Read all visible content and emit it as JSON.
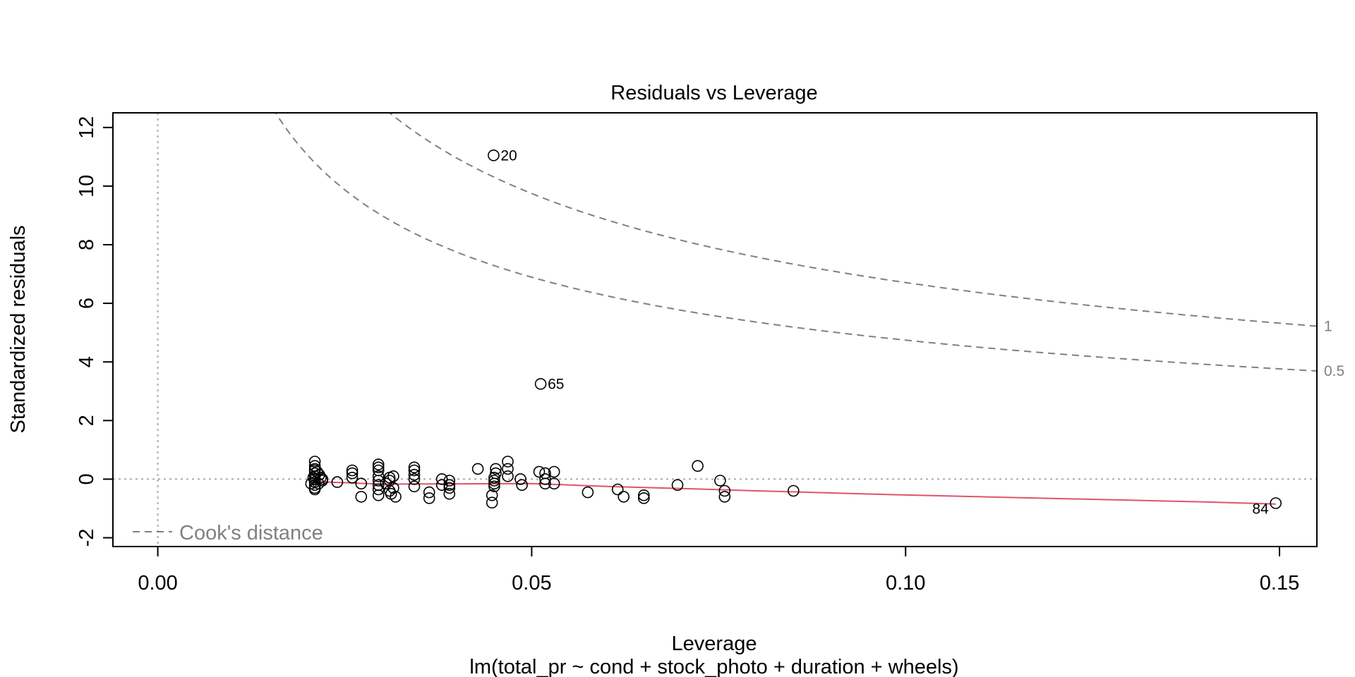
{
  "chart_data": {
    "type": "scatter",
    "title": "Residuals vs Leverage",
    "xlabel": "Leverage",
    "ylabel": "Standardized residuals",
    "subtitle": "lm(total_pr ~ cond + stock_photo + duration + wheels)",
    "xlim": [
      -0.006,
      0.155
    ],
    "ylim": [
      -2.3,
      12.5
    ],
    "x_ticks": [
      0.0,
      0.05,
      0.1,
      0.15
    ],
    "x_tick_labels": [
      "0.00",
      "0.05",
      "0.10",
      "0.15"
    ],
    "y_ticks": [
      -2,
      0,
      2,
      4,
      6,
      8,
      10,
      12
    ],
    "y_tick_labels": [
      "-2",
      "0",
      "2",
      "4",
      "6",
      "8",
      "10",
      "12"
    ],
    "grid": false,
    "reference_lines": {
      "horizontal_y": 0,
      "vertical_x": 0
    },
    "legend": {
      "position": "bottom-left",
      "label": "Cook's distance"
    },
    "cooks_contours": [
      {
        "level": 0.5,
        "label": "0.5"
      },
      {
        "level": 1,
        "label": "1"
      }
    ],
    "cook_k": 5,
    "points": [
      [
        0.0205,
        -0.15
      ],
      [
        0.0208,
        0.05
      ],
      [
        0.021,
        0.35
      ],
      [
        0.021,
        0.6
      ],
      [
        0.021,
        0.45
      ],
      [
        0.021,
        0.3
      ],
      [
        0.021,
        0.2
      ],
      [
        0.021,
        0.1
      ],
      [
        0.021,
        0.0
      ],
      [
        0.021,
        -0.1
      ],
      [
        0.021,
        -0.2
      ],
      [
        0.021,
        -0.3
      ],
      [
        0.021,
        -0.35
      ],
      [
        0.0213,
        0.25
      ],
      [
        0.0215,
        -0.15
      ],
      [
        0.0216,
        0.15
      ],
      [
        0.0218,
        0.05
      ],
      [
        0.022,
        -0.05
      ],
      [
        0.022,
        0.0
      ],
      [
        0.024,
        -0.1
      ],
      [
        0.026,
        0.3
      ],
      [
        0.026,
        0.2
      ],
      [
        0.026,
        0.05
      ],
      [
        0.0272,
        -0.6
      ],
      [
        0.0272,
        -0.15
      ],
      [
        0.0295,
        0.5
      ],
      [
        0.0295,
        0.4
      ],
      [
        0.0295,
        0.3
      ],
      [
        0.0295,
        0.1
      ],
      [
        0.0295,
        -0.05
      ],
      [
        0.0295,
        -0.2
      ],
      [
        0.0295,
        -0.35
      ],
      [
        0.0295,
        -0.55
      ],
      [
        0.0305,
        -0.15
      ],
      [
        0.031,
        0.05
      ],
      [
        0.031,
        -0.05
      ],
      [
        0.031,
        -0.4
      ],
      [
        0.0312,
        -0.5
      ],
      [
        0.0315,
        0.1
      ],
      [
        0.0315,
        -0.3
      ],
      [
        0.0318,
        -0.6
      ],
      [
        0.0343,
        0.4
      ],
      [
        0.0343,
        0.3
      ],
      [
        0.0343,
        0.15
      ],
      [
        0.0343,
        0.0
      ],
      [
        0.0343,
        -0.25
      ],
      [
        0.0363,
        -0.45
      ],
      [
        0.0363,
        -0.65
      ],
      [
        0.038,
        0.0
      ],
      [
        0.038,
        -0.2
      ],
      [
        0.039,
        -0.05
      ],
      [
        0.039,
        -0.2
      ],
      [
        0.039,
        -0.3
      ],
      [
        0.039,
        -0.5
      ],
      [
        0.0428,
        0.35
      ],
      [
        0.0447,
        -0.55
      ],
      [
        0.0447,
        -0.8
      ],
      [
        0.045,
        0.05
      ],
      [
        0.045,
        -0.05
      ],
      [
        0.045,
        -0.15
      ],
      [
        0.045,
        -0.25
      ],
      [
        0.0452,
        0.35
      ],
      [
        0.0452,
        0.2
      ],
      [
        0.0468,
        0.6
      ],
      [
        0.0468,
        0.35
      ],
      [
        0.0468,
        0.1
      ],
      [
        0.0485,
        0.0
      ],
      [
        0.0487,
        -0.2
      ],
      [
        0.051,
        0.25
      ],
      [
        0.0518,
        0.2
      ],
      [
        0.0518,
        0.0
      ],
      [
        0.0518,
        -0.15
      ],
      [
        0.053,
        0.25
      ],
      [
        0.053,
        -0.15
      ],
      [
        0.0575,
        -0.45
      ],
      [
        0.0615,
        -0.35
      ],
      [
        0.0623,
        -0.6
      ],
      [
        0.065,
        -0.55
      ],
      [
        0.065,
        -0.65
      ],
      [
        0.0695,
        -0.2
      ],
      [
        0.0722,
        0.45
      ],
      [
        0.0752,
        -0.05
      ],
      [
        0.0758,
        -0.4
      ],
      [
        0.0758,
        -0.6
      ],
      [
        0.085,
        -0.4
      ]
    ],
    "labeled_points": [
      {
        "label": "20",
        "x": 0.0449,
        "y": 11.05
      },
      {
        "label": "65",
        "x": 0.0512,
        "y": 3.25
      },
      {
        "label": "84",
        "x": 0.1495,
        "y": -0.82
      }
    ],
    "smoother": {
      "x": [
        0.0205,
        0.03,
        0.04,
        0.05,
        0.06,
        0.07,
        0.08,
        0.09,
        0.1,
        0.11,
        0.12,
        0.13,
        0.14,
        0.1495
      ],
      "y": [
        -0.08,
        -0.17,
        -0.16,
        -0.15,
        -0.25,
        -0.32,
        -0.4,
        -0.47,
        -0.54,
        -0.6,
        -0.66,
        -0.72,
        -0.78,
        -0.85
      ],
      "color": "#DF536B"
    },
    "colors": {
      "points": "#000000",
      "contours": "#808080",
      "reference": "#AAAAAA",
      "smoother": "#DF536B"
    }
  }
}
